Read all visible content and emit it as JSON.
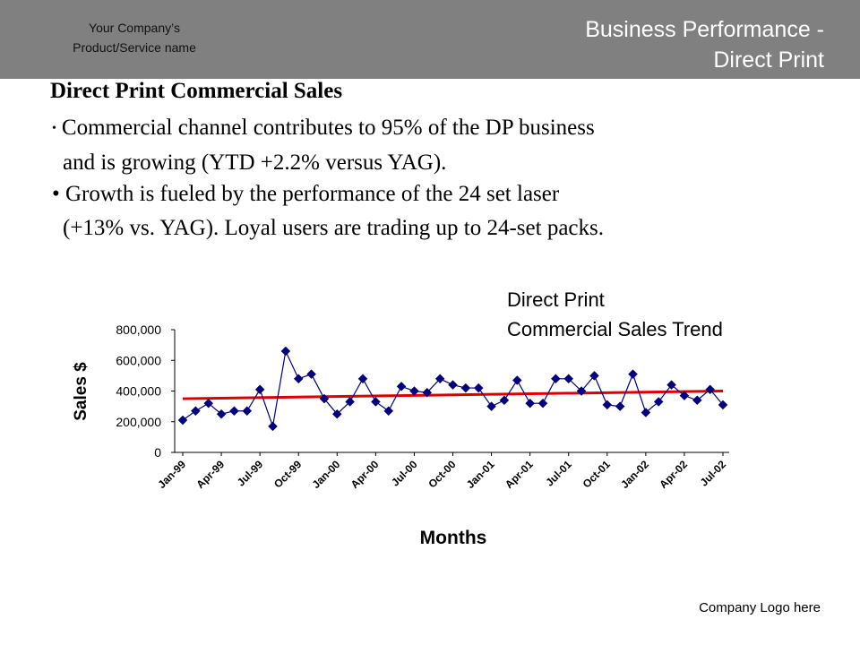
{
  "header": {
    "company": [
      "Your Company’s",
      "Product/Service name"
    ],
    "title": [
      "Business Performance -",
      "Direct Print"
    ],
    "bg_color": "#808080"
  },
  "content": {
    "heading": "Direct Print  Commercial Sales",
    "bullet1_line1": "Commercial  channel contributes to 95% of the DP business",
    "bullet1_line2": "and is growing (YTD +2.2% versus YAG).",
    "bullet2_line1": "• Growth is fueled by the performance of the 24 set laser",
    "bullet2_line2": "(+13%  vs.  YAG).  Loyal users are trading up to 24-set packs."
  },
  "chart_title": [
    "Direct Print",
    "Commercial Sales Trend"
  ],
  "chart_data": {
    "type": "line",
    "ylabel": "Sales $",
    "xlabel": "Months",
    "ylim": [
      0,
      800000
    ],
    "yticks": [
      "800,000",
      "600,000",
      "400,000",
      "200,000",
      "0"
    ],
    "ytick_values": [
      800000,
      600000,
      400000,
      200000,
      0
    ],
    "x_tick_labels": [
      "Jan-99",
      "Apr-99",
      "Jul-99",
      "Oct-99",
      "Jan-00",
      "Apr-00",
      "Jul-00",
      "Oct-00",
      "Jan-01",
      "Apr-01",
      "Jul-01",
      "Oct-01",
      "Jan-02",
      "Apr-02",
      "Jul-02"
    ],
    "x_tick_label_indices": [
      0,
      3,
      6,
      9,
      12,
      15,
      18,
      21,
      24,
      27,
      30,
      33,
      36,
      39,
      42
    ],
    "grid": false,
    "series": [
      {
        "color": "#000080",
        "marker": "diamond",
        "values": [
          210000,
          270000,
          320000,
          250000,
          270000,
          270000,
          410000,
          170000,
          660000,
          480000,
          510000,
          350000,
          250000,
          330000,
          480000,
          330000,
          270000,
          430000,
          400000,
          390000,
          480000,
          440000,
          420000,
          420000,
          300000,
          340000,
          470000,
          320000,
          320000,
          480000,
          480000,
          400000,
          500000,
          310000,
          300000,
          510000,
          260000,
          330000,
          440000,
          370000,
          340000,
          410000,
          310000
        ]
      },
      {
        "color": "#e00000",
        "type": "trend",
        "values": [
          350000,
          400000
        ]
      }
    ]
  },
  "footer": {
    "logo_text": "Company Logo here"
  }
}
